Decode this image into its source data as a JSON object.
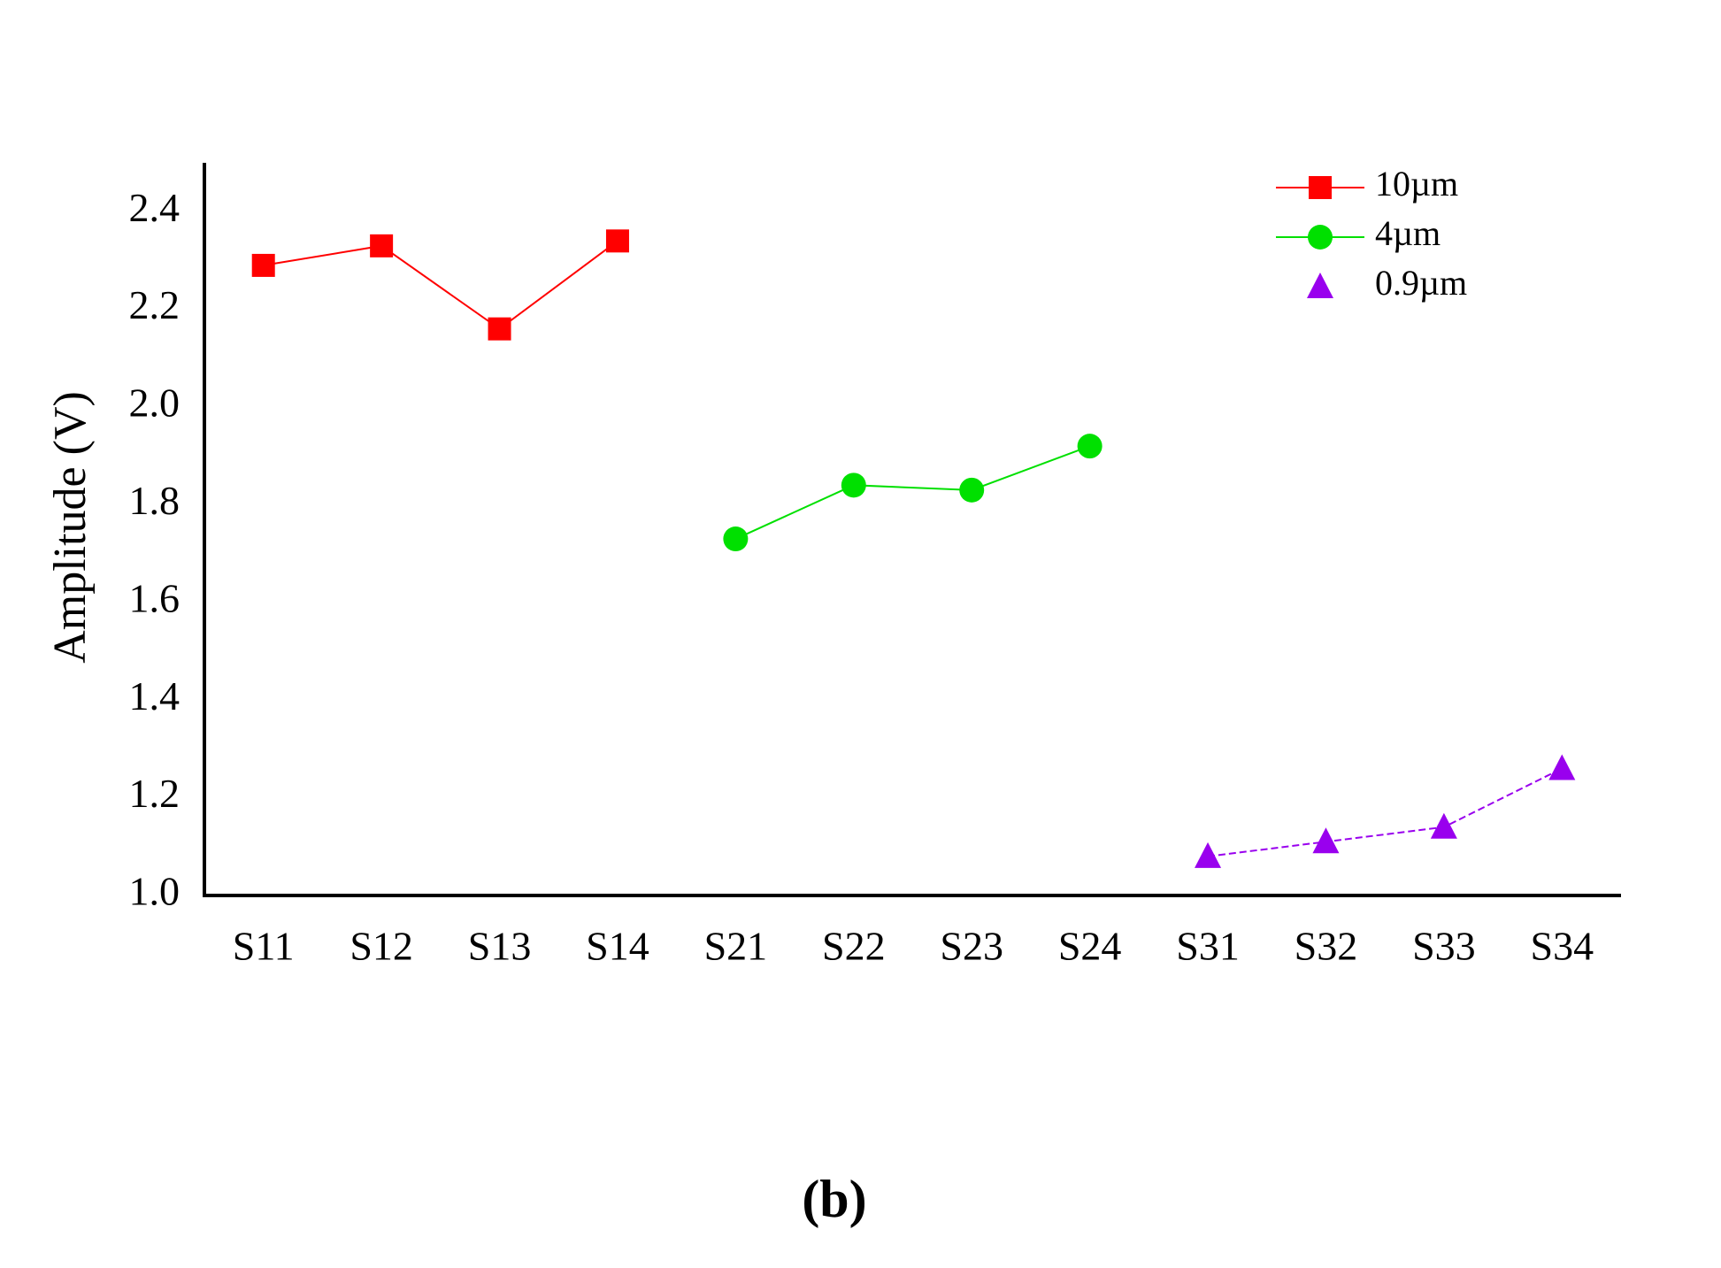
{
  "chart_data": {
    "type": "line",
    "y_label": "Amplitude (V)",
    "caption": "(b)",
    "categories": [
      "S11",
      "S12",
      "S13",
      "S14",
      "S21",
      "S22",
      "S23",
      "S24",
      "S31",
      "S32",
      "S33",
      "S34"
    ],
    "series": [
      {
        "name": "10µm",
        "color": "#ff0000",
        "marker": "square",
        "values": [
          2.29,
          2.33,
          2.16,
          2.34,
          null,
          null,
          null,
          null,
          null,
          null,
          null,
          null
        ]
      },
      {
        "name": "4µm",
        "color": "#00e000",
        "marker": "circle",
        "values": [
          null,
          null,
          null,
          null,
          1.73,
          1.84,
          1.83,
          1.92,
          null,
          null,
          null,
          null
        ]
      },
      {
        "name": "0.9µm",
        "color": "#9900ee",
        "marker": "triangle",
        "values": [
          null,
          null,
          null,
          null,
          null,
          null,
          null,
          null,
          1.08,
          1.11,
          1.14,
          1.26
        ]
      }
    ],
    "ylim": [
      1.0,
      2.5
    ],
    "yticks": [
      {
        "value": 1.0,
        "label": "1.0"
      },
      {
        "value": 1.2,
        "label": "1.2"
      },
      {
        "value": 1.4,
        "label": "1.4"
      },
      {
        "value": 1.6,
        "label": "1.6"
      },
      {
        "value": 1.8,
        "label": "1.8"
      },
      {
        "value": 2.0,
        "label": "2.0"
      },
      {
        "value": 2.2,
        "label": "2.2"
      },
      {
        "value": 2.4,
        "label": "2.4"
      }
    ],
    "legend": "upper right"
  }
}
